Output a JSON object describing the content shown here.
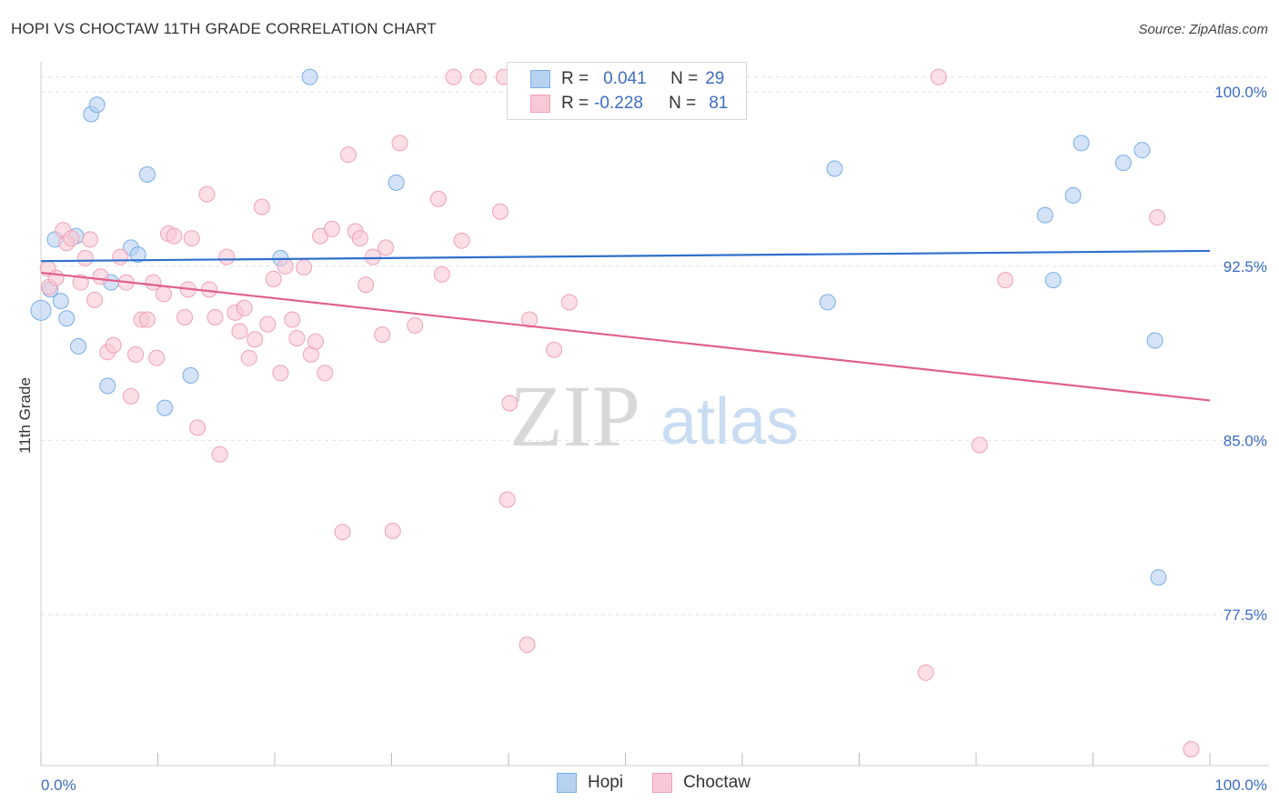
{
  "chart_data": {
    "type": "scatter",
    "title": "HOPI VS CHOCTAW 11TH GRADE CORRELATION CHART",
    "source": "Source: ZipAtlas.com",
    "xlabel": "",
    "ylabel": "11th Grade",
    "xlim": [
      0,
      100
    ],
    "ylim": [
      71,
      101.3
    ],
    "x_tick_labels": [
      "0.0%",
      "100.0%"
    ],
    "y_ticks": [
      77.5,
      85.0,
      92.5,
      100.0
    ],
    "y_tick_labels": [
      "77.5%",
      "85.0%",
      "92.5%",
      "100.0%"
    ],
    "watermark": {
      "zip": "ZIP",
      "atlas": "atlas"
    },
    "legend": {
      "r_label": "R =",
      "n_label": "N =",
      "entries": [
        {
          "name": "Hopi",
          "r": "0.041",
          "n": "29"
        },
        {
          "name": "Choctaw",
          "r": "-0.228",
          "n": "81"
        }
      ]
    },
    "series": [
      {
        "name": "Hopi",
        "color": "#7aaee6",
        "fill": "#b7d1f1",
        "line_color": "#2f6fcc",
        "trend": {
          "x": [
            0,
            100
          ],
          "y": [
            92.72,
            93.16
          ]
        },
        "points": [
          {
            "x": 0.0,
            "y": 90.6
          },
          {
            "x": 0.8,
            "y": 91.5
          },
          {
            "x": 1.2,
            "y": 93.65
          },
          {
            "x": 1.7,
            "y": 91.0
          },
          {
            "x": 2.2,
            "y": 90.25
          },
          {
            "x": 3.0,
            "y": 93.8
          },
          {
            "x": 3.2,
            "y": 89.05
          },
          {
            "x": 4.3,
            "y": 99.05
          },
          {
            "x": 4.8,
            "y": 99.45
          },
          {
            "x": 5.7,
            "y": 87.35
          },
          {
            "x": 6.0,
            "y": 91.8
          },
          {
            "x": 7.7,
            "y": 93.3
          },
          {
            "x": 8.3,
            "y": 93.0
          },
          {
            "x": 9.1,
            "y": 96.45
          },
          {
            "x": 10.6,
            "y": 86.4
          },
          {
            "x": 12.8,
            "y": 87.8
          },
          {
            "x": 20.5,
            "y": 92.85
          },
          {
            "x": 23.0,
            "y": 100.65
          },
          {
            "x": 30.4,
            "y": 96.1
          },
          {
            "x": 67.3,
            "y": 90.95
          },
          {
            "x": 67.9,
            "y": 96.7
          },
          {
            "x": 85.9,
            "y": 94.7
          },
          {
            "x": 86.6,
            "y": 91.9
          },
          {
            "x": 88.3,
            "y": 95.55
          },
          {
            "x": 89.0,
            "y": 97.8
          },
          {
            "x": 92.6,
            "y": 96.95
          },
          {
            "x": 94.2,
            "y": 97.5
          },
          {
            "x": 95.3,
            "y": 89.3
          },
          {
            "x": 95.6,
            "y": 79.1
          }
        ]
      },
      {
        "name": "Choctaw",
        "color": "#f0a0b8",
        "fill": "#f8c8d6",
        "line_color": "#e0608c",
        "trend": {
          "x": [
            0,
            100
          ],
          "y": [
            92.22,
            86.72
          ]
        },
        "points": [
          {
            "x": 0.6,
            "y": 92.4
          },
          {
            "x": 0.7,
            "y": 91.6
          },
          {
            "x": 1.3,
            "y": 92.0
          },
          {
            "x": 1.9,
            "y": 94.05
          },
          {
            "x": 2.2,
            "y": 93.5
          },
          {
            "x": 2.6,
            "y": 93.7
          },
          {
            "x": 3.4,
            "y": 91.8
          },
          {
            "x": 3.8,
            "y": 92.85
          },
          {
            "x": 4.2,
            "y": 93.65
          },
          {
            "x": 4.6,
            "y": 91.05
          },
          {
            "x": 5.1,
            "y": 92.05
          },
          {
            "x": 5.7,
            "y": 88.8
          },
          {
            "x": 6.2,
            "y": 89.1
          },
          {
            "x": 6.8,
            "y": 92.9
          },
          {
            "x": 7.3,
            "y": 91.8
          },
          {
            "x": 7.7,
            "y": 86.9
          },
          {
            "x": 8.1,
            "y": 88.7
          },
          {
            "x": 8.6,
            "y": 90.2
          },
          {
            "x": 9.1,
            "y": 90.2
          },
          {
            "x": 9.6,
            "y": 91.8
          },
          {
            "x": 9.9,
            "y": 88.55
          },
          {
            "x": 10.5,
            "y": 91.3
          },
          {
            "x": 10.9,
            "y": 93.9
          },
          {
            "x": 11.4,
            "y": 93.8
          },
          {
            "x": 12.3,
            "y": 90.3
          },
          {
            "x": 12.6,
            "y": 91.5
          },
          {
            "x": 12.9,
            "y": 93.7
          },
          {
            "x": 13.4,
            "y": 85.55
          },
          {
            "x": 14.2,
            "y": 95.6
          },
          {
            "x": 14.4,
            "y": 91.5
          },
          {
            "x": 14.9,
            "y": 90.3
          },
          {
            "x": 15.3,
            "y": 84.4
          },
          {
            "x": 15.9,
            "y": 92.9
          },
          {
            "x": 16.6,
            "y": 90.5
          },
          {
            "x": 17.0,
            "y": 89.7
          },
          {
            "x": 17.4,
            "y": 90.7
          },
          {
            "x": 17.8,
            "y": 88.55
          },
          {
            "x": 18.3,
            "y": 89.35
          },
          {
            "x": 18.9,
            "y": 95.05
          },
          {
            "x": 19.4,
            "y": 90.0
          },
          {
            "x": 19.9,
            "y": 91.95
          },
          {
            "x": 20.5,
            "y": 87.9
          },
          {
            "x": 20.9,
            "y": 92.5
          },
          {
            "x": 21.5,
            "y": 90.2
          },
          {
            "x": 21.9,
            "y": 89.4
          },
          {
            "x": 22.5,
            "y": 92.45
          },
          {
            "x": 23.1,
            "y": 88.7
          },
          {
            "x": 23.5,
            "y": 89.25
          },
          {
            "x": 23.9,
            "y": 93.8
          },
          {
            "x": 24.3,
            "y": 87.9
          },
          {
            "x": 24.9,
            "y": 94.1
          },
          {
            "x": 25.8,
            "y": 81.05
          },
          {
            "x": 26.3,
            "y": 97.3
          },
          {
            "x": 26.9,
            "y": 94.0
          },
          {
            "x": 27.3,
            "y": 93.7
          },
          {
            "x": 27.8,
            "y": 91.7
          },
          {
            "x": 28.4,
            "y": 92.9
          },
          {
            "x": 29.2,
            "y": 89.55
          },
          {
            "x": 29.5,
            "y": 93.3
          },
          {
            "x": 30.1,
            "y": 81.1
          },
          {
            "x": 30.7,
            "y": 97.8
          },
          {
            "x": 32.0,
            "y": 89.95
          },
          {
            "x": 34.0,
            "y": 95.4
          },
          {
            "x": 34.3,
            "y": 92.15
          },
          {
            "x": 35.3,
            "y": 100.65
          },
          {
            "x": 36.0,
            "y": 93.6
          },
          {
            "x": 37.4,
            "y": 100.65
          },
          {
            "x": 39.3,
            "y": 94.85
          },
          {
            "x": 39.6,
            "y": 100.65
          },
          {
            "x": 39.9,
            "y": 82.45
          },
          {
            "x": 40.1,
            "y": 86.6
          },
          {
            "x": 41.8,
            "y": 90.2
          },
          {
            "x": 41.6,
            "y": 76.2
          },
          {
            "x": 43.9,
            "y": 88.9
          },
          {
            "x": 45.2,
            "y": 90.95
          },
          {
            "x": 75.7,
            "y": 75.0
          },
          {
            "x": 76.8,
            "y": 100.65
          },
          {
            "x": 80.3,
            "y": 84.8
          },
          {
            "x": 82.5,
            "y": 91.9
          },
          {
            "x": 95.5,
            "y": 94.6
          },
          {
            "x": 98.4,
            "y": 71.7
          }
        ]
      }
    ]
  }
}
